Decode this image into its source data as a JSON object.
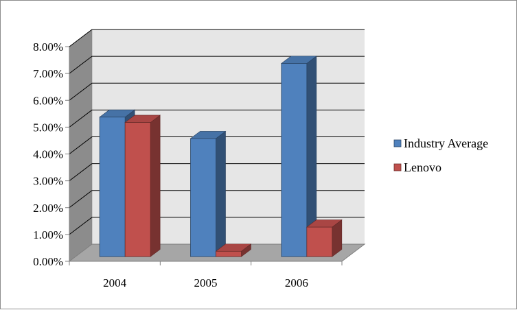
{
  "chart_data": {
    "type": "bar",
    "categories": [
      "2004",
      "2005",
      "2006"
    ],
    "series": [
      {
        "name": "Industry Average",
        "values": [
          5.2,
          4.4,
          7.2
        ],
        "color": "#4f81bd"
      },
      {
        "name": "Lenovo",
        "values": [
          5.0,
          0.2,
          1.1
        ],
        "color": "#c0504d"
      }
    ],
    "y_ticks": [
      "0.00%",
      "1.00%",
      "2.00%",
      "3.00%",
      "4.00%",
      "5.00%",
      "6.00%",
      "7.00%",
      "8.00%"
    ],
    "ylim": [
      0,
      8
    ],
    "grid": true,
    "legend_position": "right",
    "style": "3d-clustered-column",
    "title": "",
    "xlabel": "",
    "ylabel": ""
  }
}
